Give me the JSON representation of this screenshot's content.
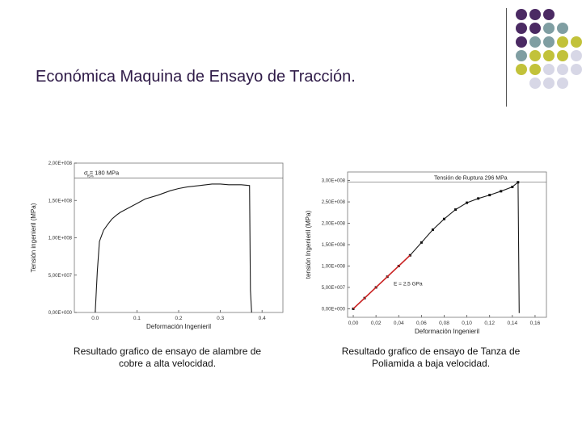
{
  "slide": {
    "title": "Económica Maquina de Ensayo de Tracción.",
    "caption_left": "Resultado grafico de ensayo de alambre de cobre a alta velocidad.",
    "caption_right": "Resultado grafico de ensayo de Tanza de Poliamida a baja velocidad.",
    "dot_colors": {
      "purple": "#4b2a63",
      "teal": "#7f9ea2",
      "olive": "#c2c23a",
      "lavender": "#d7d7e6"
    }
  },
  "chart_data": [
    {
      "type": "line",
      "ylabel": "Tensión ingenieril (MPa)",
      "xlabel": "Deformación Ingenieril",
      "xticks": [
        "0.0",
        "0.1",
        "0.2",
        "0.3",
        "0.4"
      ],
      "yticks": [
        "0,00E+000",
        "5,00E+007",
        "1,00E+008",
        "1,50E+008",
        "2,00E+008"
      ],
      "xlim": [
        -0.05,
        0.45
      ],
      "ylim": [
        0,
        200000000
      ],
      "annotation": "σ = 180 MPa",
      "annotation_sub": "f5%",
      "reference_y": 180000000,
      "series": [
        {
          "color": "#1a1a1a",
          "x": [
            0.0,
            0.005,
            0.01,
            0.02,
            0.03,
            0.04,
            0.05,
            0.06,
            0.08,
            0.1,
            0.12,
            0.15,
            0.18,
            0.2,
            0.22,
            0.25,
            0.28,
            0.3,
            0.32,
            0.35,
            0.37,
            0.372,
            0.375
          ],
          "y": [
            0,
            55000000,
            95000000,
            110000000,
            118000000,
            125000000,
            130000000,
            134000000,
            140000000,
            146000000,
            152000000,
            157000000,
            163000000,
            166000000,
            168000000,
            170000000,
            172000000,
            172000000,
            171000000,
            171000000,
            170000000,
            30000000,
            0
          ]
        }
      ]
    },
    {
      "type": "line",
      "ylabel": "tensión Ingenieril (MPa)",
      "xlabel": "Deformación Ingenieril",
      "xticks": [
        "0,00",
        "0,02",
        "0,04",
        "0,06",
        "0,08",
        "0,10",
        "0,12",
        "0,14",
        "0,16"
      ],
      "yticks": [
        "0,00E+000",
        "5,00E+007",
        "1,00E+008",
        "1,50E+008",
        "2,00E+008",
        "2,50E+008",
        "3,00E+008"
      ],
      "xlim": [
        -0.005,
        0.17
      ],
      "ylim": [
        -20000000,
        320000000
      ],
      "annotation": "Tensión de Ruptura 296 MPa",
      "fit_label": "E = 2,5 GPa",
      "reference_y": 296000000,
      "series": [
        {
          "color": "#1a1a1a",
          "x": [
            0.0,
            0.01,
            0.02,
            0.03,
            0.04,
            0.05,
            0.06,
            0.07,
            0.08,
            0.09,
            0.1,
            0.11,
            0.12,
            0.13,
            0.14,
            0.145,
            0.146
          ],
          "y": [
            0,
            25000000,
            50000000,
            75000000,
            100000000,
            125000000,
            155000000,
            185000000,
            210000000,
            232000000,
            248000000,
            258000000,
            266000000,
            275000000,
            285000000,
            296000000,
            -10000000
          ]
        },
        {
          "color": "#cc2222",
          "x": [
            0.0,
            0.05
          ],
          "y": [
            0,
            125000000
          ]
        }
      ]
    }
  ]
}
